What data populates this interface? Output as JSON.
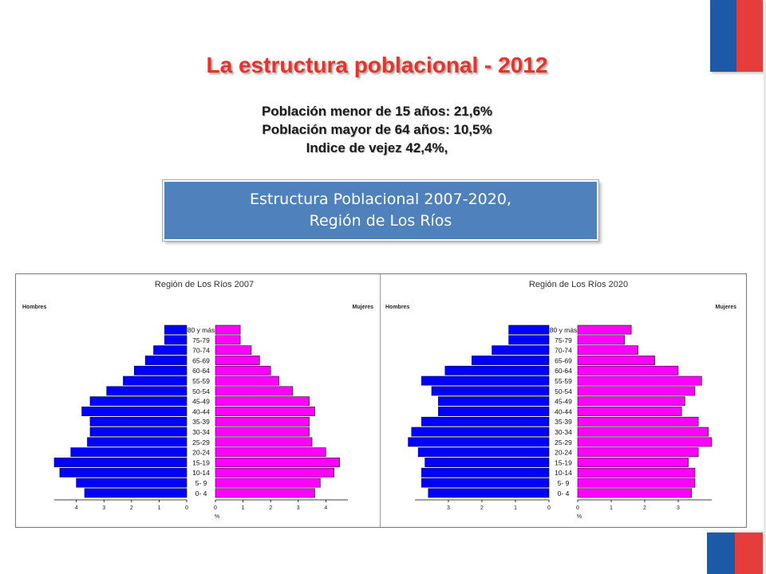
{
  "title": "La estructura poblacional  - 2012",
  "stats": [
    "Población menor de 15 años: 21,6%",
    "Población mayor de 64 años: 10,5%",
    "Indice de vejez 42,4%,"
  ],
  "caption": {
    "line1": "Estructura Poblacional 2007-2020,",
    "line2": "Región de Los Ríos"
  },
  "colors": {
    "men": "#0000ff",
    "women": "#ff00ff",
    "title": "#e8332b",
    "caption_bg": "#4f81bd"
  },
  "chart_data": [
    {
      "type": "bar",
      "orientation": "population-pyramid",
      "title": "Región de Los Ríos 2007",
      "left_label": "Hombres",
      "right_label": "Mujeres",
      "xlabel": "%",
      "xlim": [
        0,
        4.8
      ],
      "ticks": [
        0,
        1,
        2,
        3,
        4
      ],
      "categories": [
        "80 y más",
        "75-79",
        "70-74",
        "65-69",
        "60-64",
        "55-59",
        "50-54",
        "45-49",
        "40-44",
        "35-39",
        "30-34",
        "25-29",
        "20-24",
        "15-19",
        "10-14",
        "5- 9",
        "0- 4"
      ],
      "series": [
        {
          "name": "Hombres",
          "values": [
            0.8,
            0.8,
            1.2,
            1.5,
            1.9,
            2.3,
            2.9,
            3.5,
            3.8,
            3.5,
            3.5,
            3.6,
            4.2,
            4.8,
            4.6,
            4.0,
            3.7
          ]
        },
        {
          "name": "Mujeres",
          "values": [
            0.9,
            0.9,
            1.3,
            1.6,
            2.0,
            2.3,
            2.8,
            3.4,
            3.6,
            3.4,
            3.4,
            3.5,
            4.0,
            4.5,
            4.3,
            3.8,
            3.6
          ]
        }
      ]
    },
    {
      "type": "bar",
      "orientation": "population-pyramid",
      "title": "Región de Los Ríos 2020",
      "left_label": "Hombres",
      "right_label": "Mujeres",
      "xlabel": "%",
      "xlim": [
        0,
        4.0
      ],
      "ticks": [
        0,
        1,
        2,
        3
      ],
      "categories": [
        "80 y más",
        "75-79",
        "70-74",
        "65-69",
        "60-64",
        "55-59",
        "50-54",
        "45-49",
        "40-44",
        "35-39",
        "30-34",
        "25-29",
        "20-24",
        "15-19",
        "10-14",
        "5- 9",
        "0- 4"
      ],
      "series": [
        {
          "name": "Hombres",
          "values": [
            1.2,
            1.2,
            1.7,
            2.3,
            3.1,
            3.8,
            3.5,
            3.3,
            3.3,
            3.8,
            4.1,
            4.2,
            3.9,
            3.7,
            3.8,
            3.8,
            3.6
          ]
        },
        {
          "name": "Mujeres",
          "values": [
            1.6,
            1.4,
            1.8,
            2.3,
            3.0,
            3.7,
            3.5,
            3.2,
            3.1,
            3.6,
            3.9,
            4.0,
            3.6,
            3.3,
            3.5,
            3.5,
            3.4
          ]
        }
      ]
    }
  ]
}
